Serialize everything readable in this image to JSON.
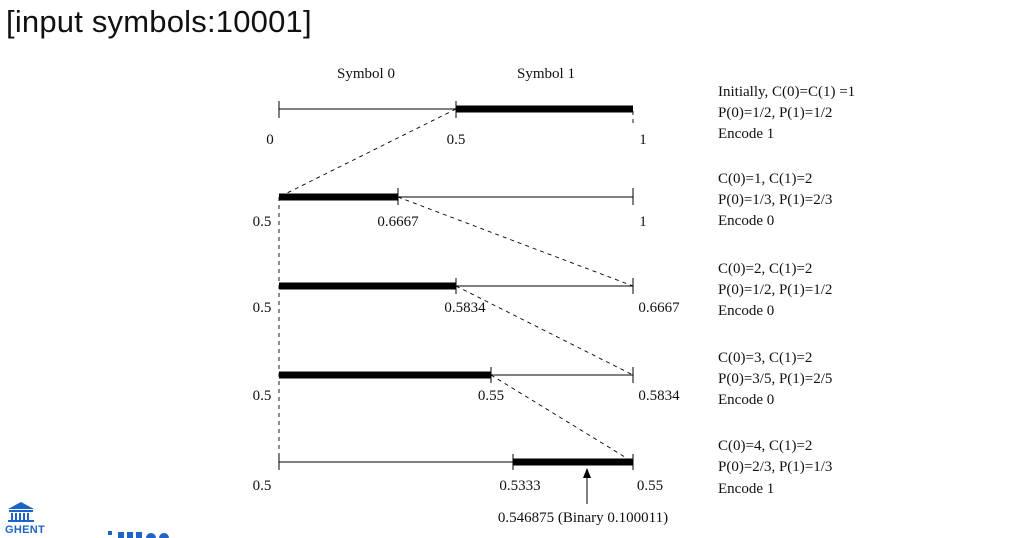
{
  "title": "[input symbols:10001]",
  "header": {
    "symbol0": "Symbol 0",
    "symbol1": "Symbol 1"
  },
  "rows": [
    {
      "left": "0",
      "mid": "0.5",
      "right": "1",
      "notes": [
        "Initially, C(0)=C(1) =1",
        "P(0)=1/2, P(1)=1/2",
        "Encode 1"
      ]
    },
    {
      "left": "0.5",
      "mid": "0.6667",
      "right": "1",
      "notes": [
        "C(0)=1, C(1)=2",
        "P(0)=1/3, P(1)=2/3",
        "Encode 0"
      ]
    },
    {
      "left": "0.5",
      "mid": "0.5834",
      "right": "0.6667",
      "notes": [
        "C(0)=2, C(1)=2",
        "P(0)=1/2, P(1)=1/2",
        "Encode 0"
      ]
    },
    {
      "left": "0.5",
      "mid": "0.55",
      "right": "0.5834",
      "notes": [
        "C(0)=3, C(1)=2",
        "P(0)=3/5, P(1)=2/5",
        "Encode 0"
      ]
    },
    {
      "left": "0.5",
      "mid": "0.5333",
      "right": "0.55",
      "notes": [
        "C(0)=4, C(1)=2",
        "P(0)=2/3, P(1)=1/3",
        "Encode 1"
      ]
    }
  ],
  "final_value": "0.546875 (Binary 0.100011)",
  "logo": {
    "text": "GHENT",
    "icon": "university-building-icon"
  }
}
